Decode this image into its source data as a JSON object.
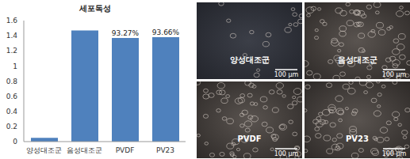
{
  "chart_data": {
    "type": "bar",
    "title": "세포독성",
    "categories": [
      "양성대조군",
      "음성대조군",
      "PVDF",
      "PV23"
    ],
    "values": [
      0.05,
      1.47,
      1.37,
      1.38
    ],
    "color": "#4f81bd",
    "ylim": [
      0,
      1.6
    ],
    "yticks": [
      0,
      0.2,
      0.4,
      0.6,
      0.8,
      1,
      1.2,
      1.4,
      1.6
    ],
    "grid": false,
    "annotations": [
      {
        "category": "PVDF",
        "text": "93.27%"
      },
      {
        "category": "PV23",
        "text": "93.66%"
      }
    ]
  },
  "micrographs": [
    {
      "label": "양성대조군",
      "scale_bar": "100 μm"
    },
    {
      "label": "음성대조군",
      "scale_bar": "100 μm"
    },
    {
      "label": "PVDF",
      "scale_bar": "100 μm"
    },
    {
      "label": "PV23",
      "scale_bar": "100 μm"
    }
  ]
}
